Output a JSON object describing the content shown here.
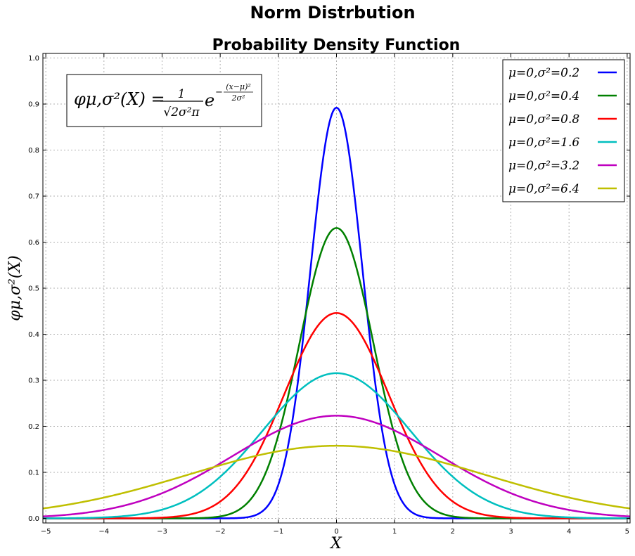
{
  "chart_data": {
    "type": "line",
    "suptitle": "Norm Distrbution",
    "title": "Probability Density Function",
    "xlabel": "X",
    "ylabel": "φμ,σ²(X)",
    "xlim": [
      -5.05,
      5.05
    ],
    "ylim": [
      -0.01,
      1.01
    ],
    "xticks": [
      "−5",
      "−4",
      "−3",
      "−2",
      "−1",
      "0",
      "1",
      "2",
      "3",
      "4",
      "5"
    ],
    "yticks": [
      "0.0",
      "0.1",
      "0.2",
      "0.3",
      "0.4",
      "0.5",
      "0.6",
      "0.7",
      "0.8",
      "0.9",
      "1.0"
    ],
    "grid": true,
    "legend_position": "top-right",
    "formula_box": {
      "lhs": "φμ,σ²(X) =",
      "numerator": "1",
      "denominator": "√2σ²π",
      "base": "e",
      "exponent_num": "(x−μ)²",
      "exponent_den": "2σ²",
      "exponent_sign": "−"
    },
    "series": [
      {
        "name": "μ=0,σ²=0.2",
        "mu": 0,
        "sigma2": 0.2,
        "color": "#0000ff"
      },
      {
        "name": "μ=0,σ²=0.4",
        "mu": 0,
        "sigma2": 0.4,
        "color": "#008000"
      },
      {
        "name": "μ=0,σ²=0.8",
        "mu": 0,
        "sigma2": 0.8,
        "color": "#ff0000"
      },
      {
        "name": "μ=0,σ²=1.6",
        "mu": 0,
        "sigma2": 1.6,
        "color": "#00bfbf"
      },
      {
        "name": "μ=0,σ²=3.2",
        "mu": 0,
        "sigma2": 3.2,
        "color": "#bf00bf"
      },
      {
        "name": "μ=0,σ²=6.4",
        "mu": 0,
        "sigma2": 6.4,
        "color": "#bfbf00"
      }
    ]
  }
}
